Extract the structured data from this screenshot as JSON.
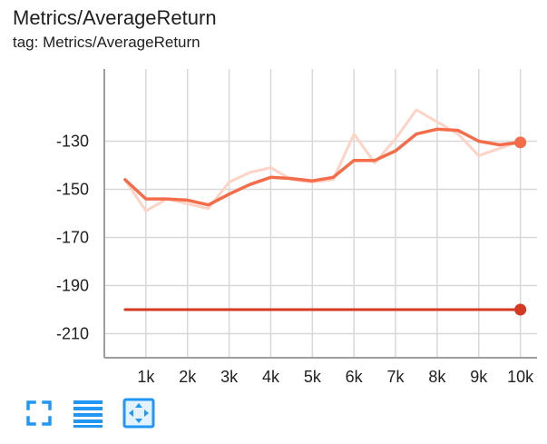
{
  "card": {
    "title": "Metrics/AverageReturn",
    "subtitle": "tag: Metrics/AverageReturn"
  },
  "colors": {
    "series_smoothed": "#f46d4b",
    "series_raw": "#fdd3c6",
    "series_flat": "#d43a23",
    "grid": "#d8d8d8",
    "axis": "#9e9e9e",
    "icon": "#2196f3"
  },
  "toolbar": {
    "icons": [
      "fullscreen-icon",
      "toggle-log-scale-icon",
      "fit-domain-icon"
    ]
  },
  "chart_data": {
    "type": "line",
    "xlim": [
      0,
      10400
    ],
    "ylim": [
      -220,
      -100
    ],
    "x_ticks": [
      1000,
      2000,
      3000,
      4000,
      5000,
      6000,
      7000,
      8000,
      9000,
      10000
    ],
    "x_tick_labels": [
      "1k",
      "2k",
      "3k",
      "4k",
      "5k",
      "6k",
      "7k",
      "8k",
      "9k",
      "10k"
    ],
    "y_ticks": [
      -130,
      -150,
      -170,
      -190,
      -210
    ],
    "y_tick_labels": [
      "-130",
      "-150",
      "-170",
      "-190",
      "-210"
    ],
    "grid": true,
    "series": [
      {
        "style": "raw",
        "x": [
          500,
          1000,
          1500,
          2000,
          2500,
          3000,
          3500,
          4000,
          4500,
          5000,
          5500,
          6000,
          6500,
          7000,
          7500,
          8000,
          8500,
          9000,
          9500,
          10000
        ],
        "y": [
          -146,
          -159,
          -154,
          -156,
          -158,
          -147,
          -143,
          -141,
          -146,
          -147,
          -146,
          -127,
          -139,
          -129,
          -117,
          -122,
          -127,
          -136,
          -133,
          -130
        ]
      },
      {
        "style": "smoothed",
        "x": [
          500,
          1000,
          1500,
          2000,
          2500,
          3000,
          3500,
          4000,
          4500,
          5000,
          5500,
          6000,
          6500,
          7000,
          7500,
          8000,
          8500,
          9000,
          9500,
          10000
        ],
        "y": [
          -146,
          -154,
          -154,
          -154.5,
          -156.5,
          -152,
          -148,
          -145,
          -145.5,
          -146.5,
          -145,
          -138,
          -138,
          -134,
          -127,
          -125,
          -125.5,
          -130,
          -131.5,
          -130.5
        ]
      },
      {
        "style": "flat",
        "x": [
          500,
          10000
        ],
        "y": [
          -200,
          -200
        ]
      }
    ]
  }
}
